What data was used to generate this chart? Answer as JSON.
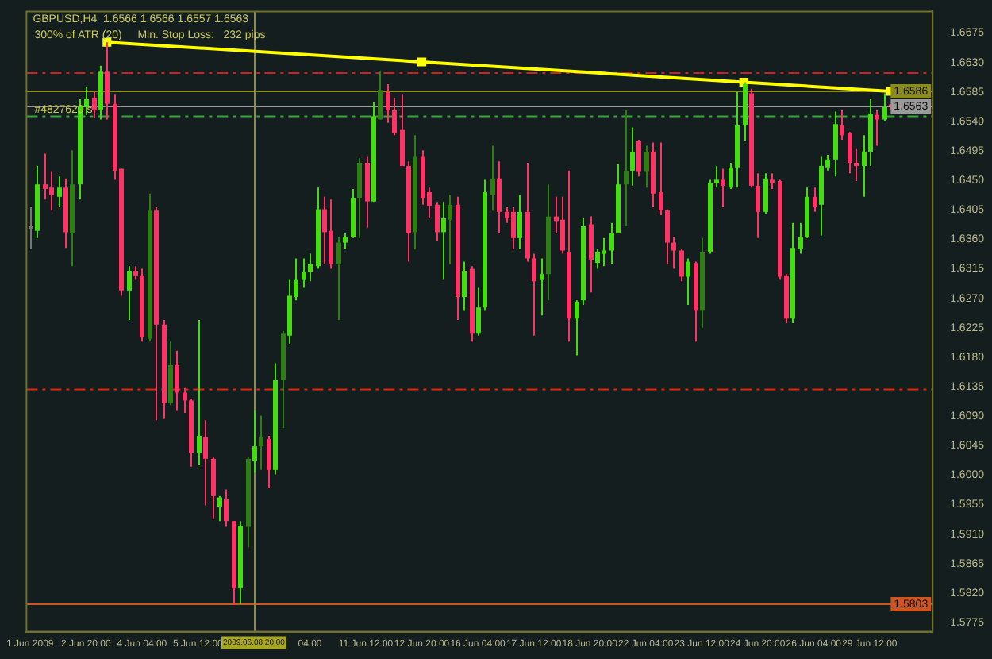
{
  "chart_data": {
    "type": "candlestick",
    "categories": [
      "1 Jun 2009",
      null,
      null,
      null,
      null,
      null,
      null,
      null,
      "2 Jun 20:00",
      null,
      null,
      null,
      null,
      null,
      null,
      null,
      "4 Jun 04:00",
      null,
      null,
      null,
      null,
      null,
      null,
      null,
      "5 Jun 12:00",
      null,
      null,
      null,
      null,
      null,
      null,
      null,
      "2009.06.08 20:00",
      null,
      null,
      null,
      null,
      null,
      null,
      null,
      "04:00",
      null,
      null,
      null,
      null,
      null,
      null,
      null,
      "11 Jun 12:00",
      null,
      null,
      null,
      null,
      null,
      null,
      null,
      "12 Jun 20:00",
      null,
      null,
      null,
      null,
      null,
      null,
      null,
      "16 Jun 04:00",
      null,
      null,
      null,
      null,
      null,
      null,
      null,
      "17 Jun 12:00",
      null,
      null,
      null,
      null,
      null,
      null,
      null,
      "18 Jun 20:00",
      null,
      null,
      null,
      null,
      null,
      null,
      null,
      "22 Jun 04:00",
      null,
      null,
      null,
      null,
      null,
      null,
      null,
      "23 Jun 12:00",
      null,
      null,
      null,
      null,
      null,
      null,
      null,
      "24 Jun 20:00",
      null,
      null,
      null,
      null,
      null,
      null,
      null,
      "26 Jun 04:00",
      null,
      null,
      null,
      null,
      null,
      null,
      null,
      "29 Jun 12:00",
      null,
      null,
      null
    ],
    "ohlc": [
      [
        1.638,
        1.6409,
        1.6345,
        1.6376
      ],
      [
        1.6373,
        1.6472,
        1.6362,
        1.6444
      ],
      [
        1.6444,
        1.6491,
        1.6421,
        1.6437
      ],
      [
        1.6439,
        1.6463,
        1.6404,
        1.6428
      ],
      [
        1.6425,
        1.6456,
        1.6409,
        1.6439
      ],
      [
        1.6439,
        1.6453,
        1.6347,
        1.6371
      ],
      [
        1.6369,
        1.6496,
        1.6319,
        1.6444
      ],
      [
        1.6444,
        1.6574,
        1.6421,
        1.6564
      ],
      [
        1.6562,
        1.6593,
        1.655,
        1.6574
      ],
      [
        1.6576,
        1.6585,
        1.6545,
        1.6557
      ],
      [
        1.6557,
        1.6625,
        1.6543,
        1.6616
      ],
      [
        1.6616,
        1.6661,
        1.6543,
        1.6567
      ],
      [
        1.6567,
        1.6581,
        1.6451,
        1.6465
      ],
      [
        1.6468,
        1.6468,
        1.6274,
        1.6282
      ],
      [
        1.6282,
        1.6319,
        1.6237,
        1.6312
      ],
      [
        1.6312,
        1.6319,
        1.6298,
        1.6305
      ],
      [
        1.6305,
        1.6315,
        1.6204,
        1.6211
      ],
      [
        1.6208,
        1.643,
        1.6204,
        1.6404
      ],
      [
        1.6404,
        1.6409,
        1.6084,
        1.623
      ],
      [
        1.623,
        1.6237,
        1.6086,
        1.611
      ],
      [
        1.611,
        1.6204,
        1.6107,
        1.6168
      ],
      [
        1.6168,
        1.619,
        1.6098,
        1.6126
      ],
      [
        1.6126,
        1.6133,
        1.6095,
        1.6114
      ],
      [
        1.6114,
        1.6117,
        1.6013,
        1.6034
      ],
      [
        1.6034,
        1.6237,
        1.6015,
        1.606
      ],
      [
        1.6058,
        1.6084,
        1.5954,
        1.6025
      ],
      [
        1.6025,
        1.6027,
        1.5933,
        1.5968
      ],
      [
        1.5952,
        1.5968,
        1.593,
        1.5966
      ],
      [
        1.5963,
        1.5978,
        1.5921,
        1.593
      ],
      [
        1.593,
        1.593,
        1.5803,
        1.5827
      ],
      [
        1.5827,
        1.593,
        1.5803,
        1.5923
      ],
      [
        1.5921,
        1.6027,
        1.589,
        1.6025
      ],
      [
        1.6022,
        1.6098,
        1.6004,
        1.6044
      ],
      [
        1.6044,
        1.6091,
        1.6008,
        1.6058
      ],
      [
        1.6055,
        1.606,
        1.598,
        1.6008
      ],
      [
        1.6008,
        1.6171,
        1.6001,
        1.6145
      ],
      [
        1.6145,
        1.622,
        1.6072,
        1.6216
      ],
      [
        1.6213,
        1.6298,
        1.6201,
        1.6274
      ],
      [
        1.6272,
        1.6331,
        1.6267,
        1.6298
      ],
      [
        1.6298,
        1.6331,
        1.6286,
        1.631
      ],
      [
        1.631,
        1.6338,
        1.6296,
        1.6322
      ],
      [
        1.6319,
        1.6439,
        1.6315,
        1.6406
      ],
      [
        1.6406,
        1.6425,
        1.6322,
        1.6371
      ],
      [
        1.6373,
        1.6421,
        1.6315,
        1.6322
      ],
      [
        1.6322,
        1.6364,
        1.6237,
        1.6355
      ],
      [
        1.6355,
        1.6369,
        1.6345,
        1.6364
      ],
      [
        1.6364,
        1.6437,
        1.6362,
        1.6423
      ],
      [
        1.6423,
        1.6484,
        1.6362,
        1.6477
      ],
      [
        1.6477,
        1.6486,
        1.6378,
        1.6418
      ],
      [
        1.6418,
        1.6569,
        1.6416,
        1.6548
      ],
      [
        1.6543,
        1.6616,
        1.6543,
        1.6588
      ],
      [
        1.6585,
        1.6597,
        1.6538,
        1.6557
      ],
      [
        1.6557,
        1.6576,
        1.6519,
        1.6522
      ],
      [
        1.6527,
        1.6581,
        1.6472,
        1.6472
      ],
      [
        1.6472,
        1.6479,
        1.6326,
        1.6369
      ],
      [
        1.6371,
        1.6519,
        1.6345,
        1.6486
      ],
      [
        1.6486,
        1.6496,
        1.6413,
        1.6423
      ],
      [
        1.6432,
        1.6439,
        1.6392,
        1.6411
      ],
      [
        1.6413,
        1.6416,
        1.6357,
        1.6371
      ],
      [
        1.6371,
        1.6416,
        1.6298,
        1.6392
      ],
      [
        1.639,
        1.6428,
        1.6322,
        1.6413
      ],
      [
        1.6413,
        1.6425,
        1.6237,
        1.6272
      ],
      [
        1.6272,
        1.6326,
        1.6251,
        1.6312
      ],
      [
        1.6315,
        1.6319,
        1.6204,
        1.6216
      ],
      [
        1.6216,
        1.6286,
        1.6213,
        1.6256
      ],
      [
        1.6256,
        1.6451,
        1.6251,
        1.6432
      ],
      [
        1.6428,
        1.6503,
        1.6404,
        1.6453
      ],
      [
        1.6453,
        1.6479,
        1.6369,
        1.6402
      ],
      [
        1.6402,
        1.6409,
        1.6385,
        1.6392
      ],
      [
        1.6402,
        1.6409,
        1.6345,
        1.6362
      ],
      [
        1.6362,
        1.6428,
        1.6345,
        1.6402
      ],
      [
        1.6402,
        1.6477,
        1.6326,
        1.6331
      ],
      [
        1.6331,
        1.6338,
        1.6213,
        1.6296
      ],
      [
        1.6298,
        1.6331,
        1.6244,
        1.6307
      ],
      [
        1.6307,
        1.6444,
        1.6267,
        1.6395
      ],
      [
        1.6395,
        1.6425,
        1.6369,
        1.6388
      ],
      [
        1.639,
        1.6425,
        1.6338,
        1.6343
      ],
      [
        1.634,
        1.6465,
        1.6204,
        1.6239
      ],
      [
        1.6239,
        1.6267,
        1.6183,
        1.6265
      ],
      [
        1.6267,
        1.6392,
        1.626,
        1.638
      ],
      [
        1.6383,
        1.6395,
        1.6279,
        1.6329
      ],
      [
        1.6324,
        1.6345,
        1.6315,
        1.634
      ],
      [
        1.6338,
        1.6362,
        1.6319,
        1.6343
      ],
      [
        1.6343,
        1.6385,
        1.6322,
        1.6369
      ],
      [
        1.6369,
        1.6475,
        1.6369,
        1.6444
      ],
      [
        1.6444,
        1.6557,
        1.638,
        1.6465
      ],
      [
        1.6465,
        1.6531,
        1.6442,
        1.6494
      ],
      [
        1.651,
        1.6512,
        1.6456,
        1.6463
      ],
      [
        1.6463,
        1.6503,
        1.6439,
        1.6494
      ],
      [
        1.6494,
        1.6508,
        1.6409,
        1.643
      ],
      [
        1.6432,
        1.6508,
        1.6397,
        1.6404
      ],
      [
        1.6404,
        1.6406,
        1.6322,
        1.6355
      ],
      [
        1.6355,
        1.6364,
        1.6315,
        1.6343
      ],
      [
        1.6343,
        1.6345,
        1.6296,
        1.6303
      ],
      [
        1.6303,
        1.6331,
        1.626,
        1.6326
      ],
      [
        1.6324,
        1.6326,
        1.6204,
        1.6251
      ],
      [
        1.6251,
        1.6362,
        1.6225,
        1.634
      ],
      [
        1.634,
        1.6451,
        1.6338,
        1.6446
      ],
      [
        1.6446,
        1.6472,
        1.6439,
        1.6451
      ],
      [
        1.6451,
        1.6468,
        1.6409,
        1.6442
      ],
      [
        1.6439,
        1.6477,
        1.6437,
        1.647
      ],
      [
        1.647,
        1.6585,
        1.6439,
        1.6534
      ],
      [
        1.6534,
        1.66,
        1.651,
        1.6597
      ],
      [
        1.6583,
        1.659,
        1.6439,
        1.6442
      ],
      [
        1.6442,
        1.6461,
        1.6362,
        1.6402
      ],
      [
        1.6402,
        1.6461,
        1.6399,
        1.6453
      ],
      [
        1.6451,
        1.6461,
        1.6437,
        1.6446
      ],
      [
        1.6449,
        1.6451,
        1.6298,
        1.6303
      ],
      [
        1.6305,
        1.6307,
        1.6232,
        1.6239
      ],
      [
        1.6239,
        1.6385,
        1.6232,
        1.6347
      ],
      [
        1.6345,
        1.6385,
        1.6338,
        1.6364
      ],
      [
        1.6364,
        1.6439,
        1.6362,
        1.6425
      ],
      [
        1.6425,
        1.6439,
        1.6402,
        1.6409
      ],
      [
        1.6413,
        1.6486,
        1.6366,
        1.6472
      ],
      [
        1.647,
        1.6489,
        1.6465,
        1.6482
      ],
      [
        1.6482,
        1.6555,
        1.6456,
        1.6536
      ],
      [
        1.6534,
        1.6557,
        1.6512,
        1.6519
      ],
      [
        1.6522,
        1.6524,
        1.6461,
        1.6477
      ],
      [
        1.6477,
        1.6498,
        1.6449,
        1.6472
      ],
      [
        1.6472,
        1.6519,
        1.6425,
        1.6494
      ],
      [
        1.6494,
        1.6574,
        1.6472,
        1.6552
      ],
      [
        1.655,
        1.6557,
        1.6503,
        1.6543
      ],
      [
        1.6543,
        1.6583,
        1.6541,
        1.6562
      ],
      [
        1.6566,
        1.6566,
        1.6557,
        1.6563
      ]
    ],
    "colors": [
      "#777777",
      "#44dd11",
      "#ff3366",
      "#ff3366",
      "#44dd11",
      "#ff3366",
      "#2e7d15",
      "#44dd11",
      "#44dd11",
      "#ff3366",
      "#44dd11",
      "#ff3366",
      "#ff3366",
      "#ff3366",
      "#44dd11",
      "#ff3366",
      "#ff3366",
      "#2e7d15",
      "#ff3366",
      "#ff3366",
      "#2e7d15",
      "#ff3366",
      "#ff3366",
      "#ff3366",
      "#44dd11",
      "#ff3366",
      "#ff3366",
      "#44dd11",
      "#ff3366",
      "#ff3366",
      "#44dd11",
      "#2e7d15",
      "#44dd11",
      "#2e7d15",
      "#ff3366",
      "#44dd11",
      "#2e7d15",
      "#44dd11",
      "#44dd11",
      "#44dd11",
      "#44dd11",
      "#44dd11",
      "#ff3366",
      "#ff3366",
      "#2e7d15",
      "#44dd11",
      "#44dd11",
      "#2e7d15",
      "#ff3366",
      "#44dd11",
      "#2e7d15",
      "#ff3366",
      "#ff3366",
      "#ff3366",
      "#ff3366",
      "#2e7d15",
      "#ff3366",
      "#ff3366",
      "#ff3366",
      "#44dd11",
      "#2e7d15",
      "#ff3366",
      "#44dd11",
      "#ff3366",
      "#44dd11",
      "#44dd11",
      "#2e7d15",
      "#ff3366",
      "#ff3366",
      "#ff3366",
      "#44dd11",
      "#ff3366",
      "#ff3366",
      "#44dd11",
      "#2e7d15",
      "#ff3366",
      "#ff3366",
      "#ff3366",
      "#44dd11",
      "#44dd11",
      "#ff3366",
      "#44dd11",
      "#44dd11",
      "#44dd11",
      "#44dd11",
      "#2e7d15",
      "#44dd11",
      "#ff3366",
      "#2e7d15",
      "#ff3366",
      "#ff3366",
      "#ff3366",
      "#ff3366",
      "#ff3366",
      "#44dd11",
      "#ff3366",
      "#2e7d15",
      "#44dd11",
      "#44dd11",
      "#ff3366",
      "#44dd11",
      "#44dd11",
      "#44dd11",
      "#ff3366",
      "#ff3366",
      "#44dd11",
      "#ff3366",
      "#ff3366",
      "#ff3366",
      "#44dd11",
      "#44dd11",
      "#44dd11",
      "#ff3366",
      "#44dd11",
      "#44dd11",
      "#44dd11",
      "#ff3366",
      "#ff3366",
      "#ff3366",
      "#44dd11",
      "#44dd11",
      "#ff3366",
      "#44dd11",
      "#ff3366"
    ],
    "series": [
      {
        "type": "line",
        "color": "#ffff00",
        "values": [
          null,
          null,
          null,
          null,
          null,
          null,
          null,
          null,
          null,
          null,
          null,
          1.6661,
          null,
          null,
          null,
          null,
          null,
          null,
          null,
          null,
          null,
          null,
          null,
          null,
          null,
          null,
          null,
          null,
          null,
          null,
          null,
          null,
          null,
          null,
          null,
          null,
          null,
          null,
          null,
          null,
          null,
          null,
          null,
          null,
          null,
          null,
          null,
          null,
          null,
          null,
          null,
          null,
          null,
          null,
          null,
          null,
          1.6631,
          null,
          null,
          null,
          null,
          null,
          null,
          null,
          null,
          null,
          null,
          null,
          null,
          null,
          null,
          null,
          null,
          null,
          null,
          null,
          null,
          null,
          null,
          null,
          null,
          null,
          null,
          null,
          null,
          null,
          null,
          null,
          null,
          null,
          null,
          null,
          null,
          null,
          null,
          null,
          null,
          null,
          null,
          null,
          null,
          null,
          1.66,
          null,
          null,
          null,
          null,
          null,
          null,
          null,
          null,
          null,
          null,
          null,
          null,
          null,
          null,
          null,
          null,
          null,
          null,
          null,
          null,
          1.6586
        ]
      }
    ],
    "marker": "square",
    "ylim": [
      1.5761,
      1.6708
    ],
    "yticks": [
      1.6675,
      {
        "value": 1.663,
        "label": "1.6630"
      },
      1.6585,
      {
        "value": 1.654,
        "label": "1.6540"
      },
      1.6495,
      {
        "value": 1.645,
        "label": "1.6450"
      },
      1.6405,
      {
        "value": 1.636,
        "label": "1.6360"
      },
      1.6315,
      {
        "value": 1.627,
        "label": "1.6270"
      },
      1.6225,
      {
        "value": 1.618,
        "label": "1.6180"
      },
      1.6135,
      {
        "value": 1.609,
        "label": "1.6090"
      },
      1.6045,
      {
        "value": 1.6,
        "label": "1.6000"
      },
      1.5955,
      {
        "value": 1.591,
        "label": "1.5910"
      },
      1.5865,
      {
        "value": 1.582,
        "label": "1.5820"
      },
      1.5775
    ],
    "grid": false,
    "legend": false,
    "ref_lines": [
      {
        "axis": "y",
        "value": 1.6614,
        "color": "#cc2222",
        "line_style": "dashed"
      },
      {
        "axis": "y",
        "value": 1.6586,
        "label": "1.6586",
        "color": "#8c8c1e"
      },
      {
        "axis": "y",
        "value": 1.6563,
        "label": "1.6563",
        "color": "#9a9a9a"
      },
      {
        "axis": "y",
        "value": 1.6548,
        "color": "#33aa33",
        "line_style": "dashed"
      },
      {
        "axis": "y",
        "value": 1.6131,
        "color": "#ee2200",
        "line_style": "dashed"
      },
      {
        "axis": "y",
        "value": 1.5803,
        "label": "1.5803",
        "color": "#cc5522"
      },
      {
        "axis": "x",
        "value": "2009.06.08 20:00",
        "color": "#8c8c50"
      }
    ],
    "annotations": [
      "GBPUSD,H4  1.6566 1.6566 1.6557 1.6563",
      "300% of ATR (20)",
      "Min. Stop Loss:   232 pips",
      "#4827620 s"
    ]
  }
}
